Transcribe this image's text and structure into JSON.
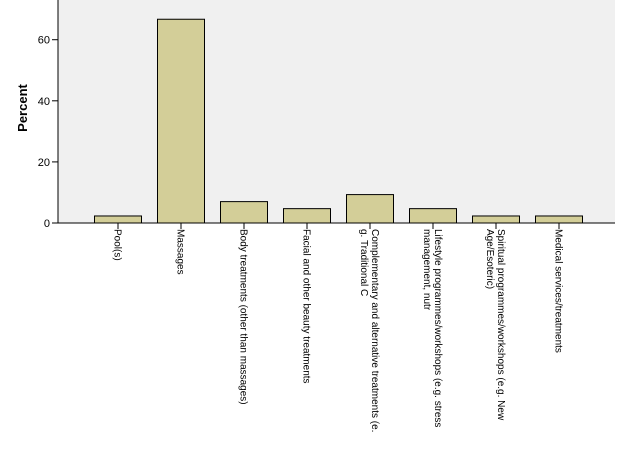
{
  "chart_data": {
    "type": "bar",
    "title": "",
    "xlabel": "",
    "ylabel": "Percent",
    "ylim": [
      0,
      73
    ],
    "yticks": [
      0,
      20,
      40,
      60
    ],
    "grid": false,
    "categories": [
      "Pool(s)",
      "Massages",
      "Body treatments (other than massages)",
      "Facial and other beauty treatments",
      "Complementary and alternative treatments (e.g. Traditional C",
      "Lifestyle programmes/workshops (e.g. stress management, nutr",
      "Spiritual programmes/workshops (e.g. New Age/Esoteric)",
      "Medical services/treatments"
    ],
    "category_label_lines": [
      [
        "Pool(s)"
      ],
      [
        "Massages"
      ],
      [
        "Body treatments (other than massages)"
      ],
      [
        "Facial and other beauty treatments"
      ],
      [
        "Complementary and alternative treatments (e.",
        "g. Traditional C"
      ],
      [
        "Lifestyle programmes/workshops (e.g. stress",
        "management, nutr"
      ],
      [
        "Spiritual programmes/workshops (e.g. New",
        "Age/Esoteric)"
      ],
      [
        "Medical services/treatments"
      ]
    ],
    "values": [
      2.3,
      66.7,
      7.0,
      4.7,
      9.3,
      4.7,
      2.3,
      2.3
    ],
    "colors": {
      "plot_background": "#f0f0f0",
      "bar_fill": "#d3ce98",
      "bar_stroke": "#000000",
      "axis": "#000000",
      "text": "#000000"
    }
  }
}
